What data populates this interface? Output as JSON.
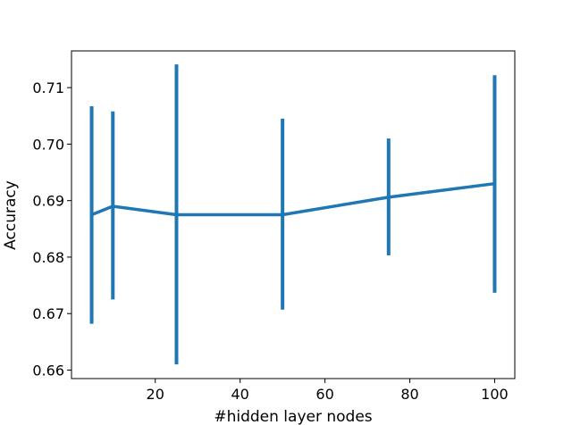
{
  "chart_data": {
    "type": "line",
    "title": "",
    "xlabel": "#hidden layer nodes",
    "ylabel": "Accuracy",
    "xlim": [
      0.25,
      104.75
    ],
    "ylim": [
      0.6585,
      0.7165
    ],
    "xticks": [
      {
        "value": 20,
        "label": "20"
      },
      {
        "value": 40,
        "label": "40"
      },
      {
        "value": 60,
        "label": "60"
      },
      {
        "value": 80,
        "label": "80"
      },
      {
        "value": 100,
        "label": "100"
      }
    ],
    "yticks": [
      {
        "value": 0.66,
        "label": "0.66"
      },
      {
        "value": 0.67,
        "label": "0.67"
      },
      {
        "value": 0.68,
        "label": "0.68"
      },
      {
        "value": 0.69,
        "label": "0.69"
      },
      {
        "value": 0.7,
        "label": "0.70"
      },
      {
        "value": 0.71,
        "label": "0.71"
      }
    ],
    "grid": false,
    "series": [
      {
        "color": "#1f77b4",
        "x": [
          5,
          10,
          25,
          50,
          75,
          100
        ],
        "y": [
          0.6875,
          0.689,
          0.6875,
          0.6875,
          0.6906,
          0.693
        ],
        "error_low": [
          0.6682,
          0.6725,
          0.661,
          0.6707,
          0.6803,
          0.6737
        ],
        "error_high": [
          0.7067,
          0.7058,
          0.7141,
          0.7045,
          0.701,
          0.7122
        ]
      }
    ]
  }
}
